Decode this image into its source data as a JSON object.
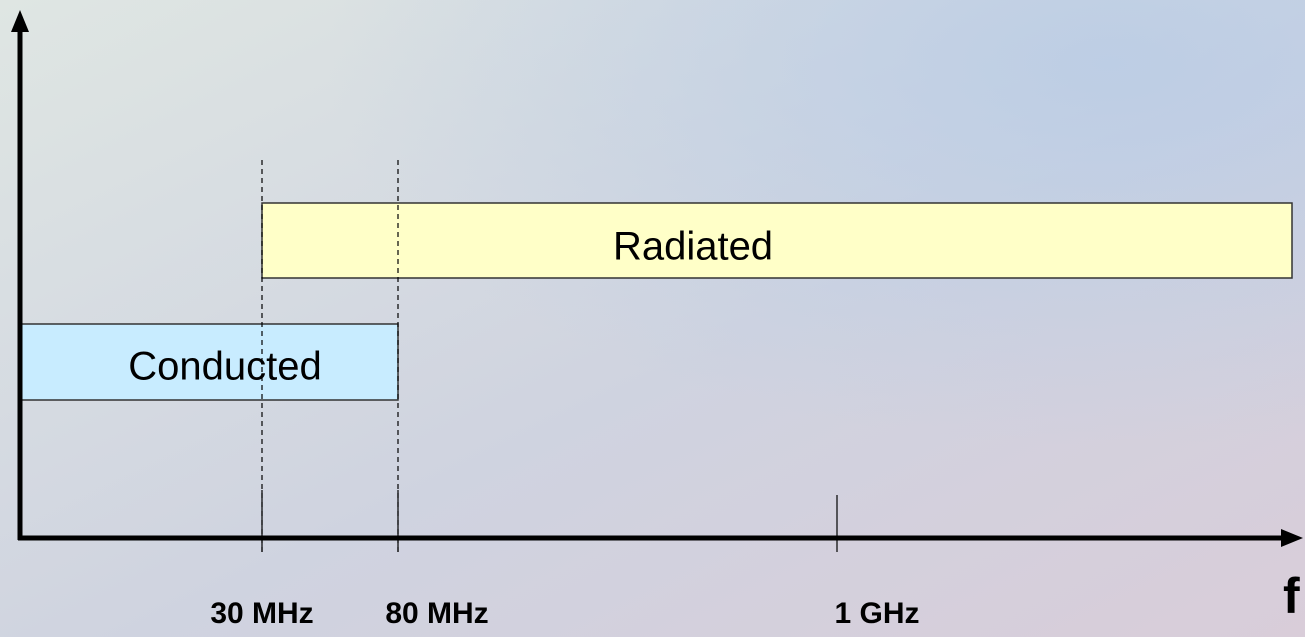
{
  "diagram": {
    "bands": [
      {
        "label": "Radiated"
      },
      {
        "label": "Conducted"
      }
    ],
    "ticks": [
      {
        "label": "30 MHz"
      },
      {
        "label": "80 MHz"
      },
      {
        "label": "1 GHz"
      }
    ],
    "axis_label": "f"
  }
}
